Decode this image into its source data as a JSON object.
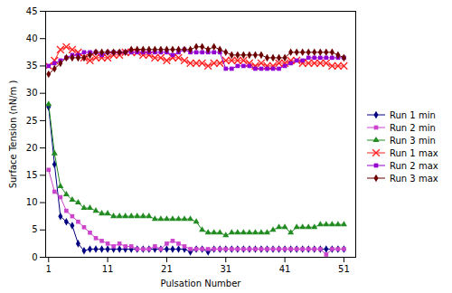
{
  "chart_data": {
    "type": "line",
    "xlabel": "Pulsation Number",
    "ylabel": "Surface Tension (nN/m )",
    "x": [
      1,
      2,
      3,
      4,
      5,
      6,
      7,
      8,
      9,
      10,
      11,
      12,
      13,
      14,
      15,
      16,
      17,
      18,
      19,
      20,
      21,
      22,
      23,
      24,
      25,
      26,
      27,
      28,
      29,
      30,
      31,
      32,
      33,
      34,
      35,
      36,
      37,
      38,
      39,
      40,
      41,
      42,
      43,
      44,
      45,
      46,
      47,
      48,
      49,
      50,
      51
    ],
    "xlim": [
      0.5,
      53
    ],
    "ylim": [
      0,
      45
    ],
    "xticks": [
      1,
      11,
      21,
      31,
      41,
      51
    ],
    "yticks": [
      0,
      5,
      10,
      15,
      20,
      25,
      30,
      35,
      40,
      45
    ],
    "grid": false,
    "legend": "right",
    "series": [
      {
        "name": "Run 1 min",
        "color": "#000080",
        "marker": "diamond",
        "values": [
          27.5,
          17.0,
          7.5,
          6.5,
          5.8,
          2.5,
          1.2,
          1.5,
          1.5,
          1.5,
          1.5,
          1.5,
          1.5,
          1.5,
          1.5,
          1.5,
          1.5,
          1.5,
          1.5,
          1.5,
          1.5,
          1.5,
          1.5,
          1.5,
          1.0,
          1.5,
          1.5,
          1.0,
          1.5,
          1.5,
          1.5,
          1.5,
          1.5,
          1.5,
          1.5,
          1.5,
          1.5,
          1.5,
          1.5,
          1.5,
          1.5,
          1.5,
          1.5,
          1.5,
          1.5,
          1.5,
          1.5,
          1.5,
          1.5,
          1.5,
          1.5
        ]
      },
      {
        "name": "Run 2 min",
        "color": "#CC44CC",
        "marker": "square",
        "values": [
          16.0,
          12.0,
          11.0,
          8.5,
          7.5,
          6.5,
          5.5,
          4.5,
          3.5,
          3.0,
          2.5,
          2.0,
          2.5,
          2.0,
          2.0,
          1.5,
          1.5,
          1.5,
          2.0,
          1.5,
          2.5,
          3.0,
          2.5,
          2.0,
          1.5,
          1.5,
          1.5,
          1.5,
          1.5,
          1.5,
          1.5,
          1.5,
          1.5,
          1.5,
          1.5,
          1.5,
          1.5,
          1.5,
          1.5,
          1.5,
          1.5,
          1.5,
          1.5,
          1.5,
          1.5,
          1.5,
          1.5,
          0.5,
          1.5,
          1.5,
          1.5
        ]
      },
      {
        "name": "Run 3 min",
        "color": "#228B22",
        "marker": "triangle",
        "values": [
          28.0,
          19.0,
          13.0,
          11.5,
          10.5,
          10.0,
          9.0,
          9.0,
          8.5,
          8.0,
          8.0,
          7.5,
          7.5,
          7.5,
          7.5,
          7.5,
          7.5,
          7.5,
          7.0,
          7.0,
          7.0,
          7.0,
          7.0,
          7.0,
          7.0,
          6.5,
          5.0,
          4.5,
          4.5,
          4.5,
          4.0,
          4.5,
          4.5,
          4.5,
          4.5,
          4.5,
          4.5,
          4.5,
          5.0,
          5.5,
          5.5,
          4.5,
          5.5,
          5.5,
          5.5,
          5.5,
          6.0,
          6.0,
          6.0,
          6.0,
          6.0
        ]
      },
      {
        "name": "Run 1 max",
        "color": "#FF2020",
        "marker": "x",
        "values": [
          35.0,
          36.0,
          38.0,
          38.5,
          38.0,
          37.5,
          36.5,
          36.0,
          36.5,
          36.5,
          36.5,
          37.0,
          37.0,
          37.5,
          37.5,
          37.5,
          37.0,
          37.0,
          36.5,
          36.5,
          36.0,
          36.5,
          36.5,
          36.0,
          35.5,
          35.5,
          35.5,
          35.0,
          35.5,
          35.5,
          36.0,
          36.0,
          36.0,
          36.0,
          35.5,
          35.0,
          35.5,
          35.0,
          35.0,
          35.5,
          35.5,
          36.0,
          36.0,
          35.5,
          35.5,
          35.5,
          35.5,
          35.5,
          35.0,
          35.0,
          35.0
        ]
      },
      {
        "name": "Run 2 max",
        "color": "#9400D3",
        "marker": "square",
        "values": [
          35.0,
          35.5,
          36.0,
          36.5,
          37.0,
          37.0,
          37.5,
          37.5,
          37.5,
          37.0,
          37.5,
          37.5,
          37.5,
          37.5,
          37.5,
          37.5,
          37.5,
          37.5,
          37.5,
          37.5,
          37.5,
          37.0,
          37.5,
          38.0,
          37.5,
          37.5,
          37.5,
          37.5,
          37.5,
          37.5,
          34.5,
          34.5,
          35.0,
          35.0,
          35.0,
          34.5,
          34.5,
          34.5,
          34.5,
          34.5,
          35.0,
          35.5,
          36.0,
          36.0,
          36.5,
          36.5,
          36.5,
          36.5,
          36.5,
          36.5,
          36.5
        ]
      },
      {
        "name": "Run 3 max",
        "color": "#6B0000",
        "marker": "diamond",
        "values": [
          33.5,
          34.5,
          35.5,
          36.5,
          36.5,
          36.5,
          36.5,
          37.0,
          37.5,
          37.5,
          37.5,
          37.5,
          37.5,
          37.5,
          38.0,
          38.0,
          38.0,
          38.0,
          38.0,
          38.0,
          38.0,
          38.0,
          38.0,
          38.0,
          38.0,
          38.5,
          38.5,
          38.0,
          38.5,
          38.0,
          37.5,
          37.0,
          37.0,
          37.0,
          37.0,
          37.0,
          37.0,
          36.5,
          36.5,
          36.5,
          36.5,
          37.5,
          37.5,
          37.5,
          37.5,
          37.5,
          37.5,
          37.5,
          37.5,
          37.0,
          36.5
        ]
      }
    ]
  }
}
